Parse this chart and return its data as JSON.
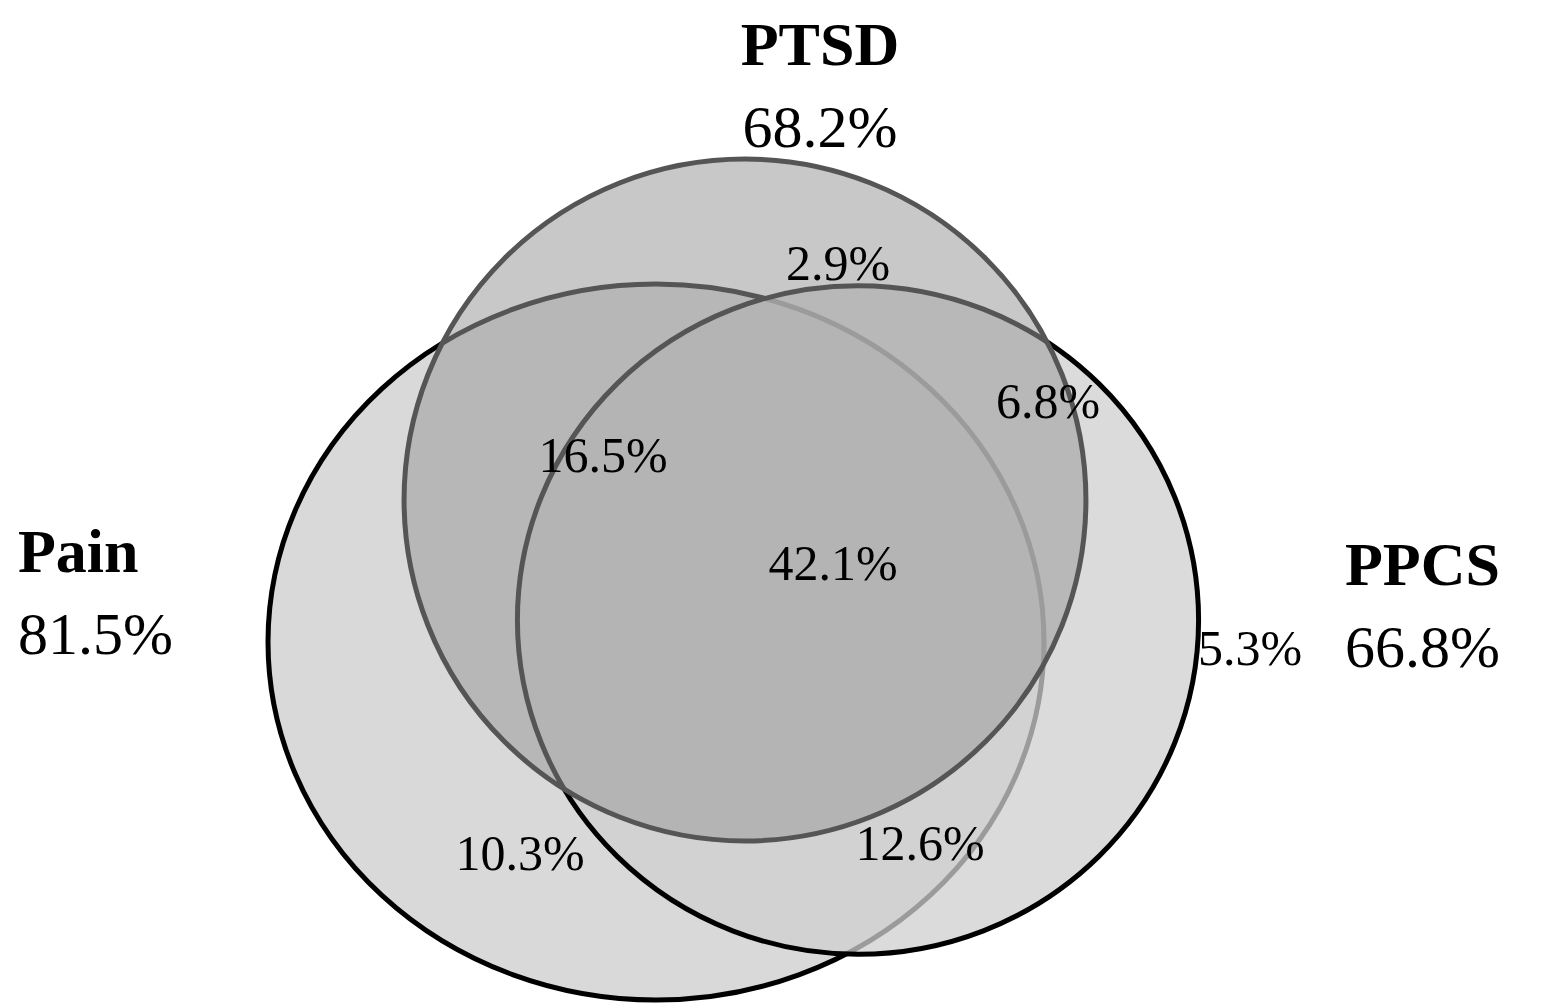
{
  "chart_data": {
    "type": "other",
    "categories": [
      "Pain",
      "PPCS",
      "PTSD"
    ],
    "values": [
      81.5,
      66.8,
      68.2
    ],
    "value_labels": [
      "81.5%",
      "66.8%",
      "68.2%"
    ],
    "colors": [
      "#d9d9d9",
      "#cfcfcf",
      "#9a9a9a"
    ],
    "annotations": [
      "2.9%",
      "6.8%",
      "16.5%",
      "42.1%",
      "5.3%",
      "10.3%",
      "12.6%"
    ]
  }
}
